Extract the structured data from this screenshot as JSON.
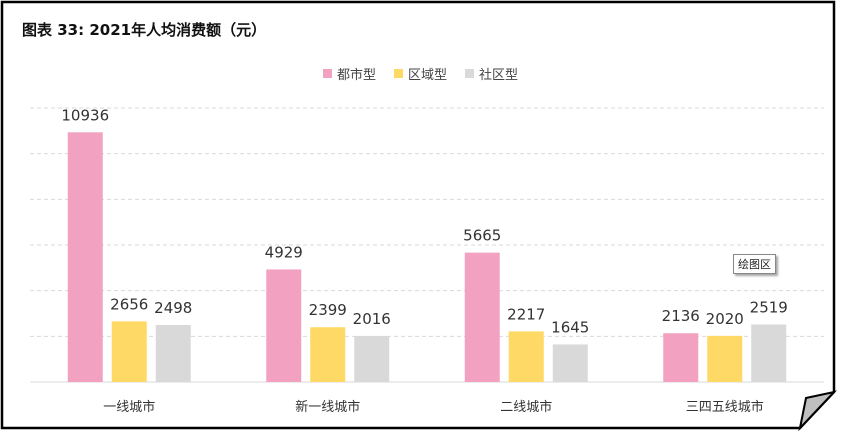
{
  "title": "图表 33: 2021年人均消费额（元）",
  "tooltip": "绘图区",
  "colors": {
    "pink": "#F2A2C0",
    "yellow": "#FFD966",
    "gray": "#D9D9D9"
  },
  "chart_data": {
    "type": "bar",
    "title": "图表 33: 2021年人均消费额（元）",
    "categories": [
      "一线城市",
      "新一线城市",
      "二线城市",
      "三四五线城市"
    ],
    "series": [
      {
        "name": "都市型",
        "color": "#F2A2C0",
        "values": [
          10936,
          4929,
          5665,
          2136
        ]
      },
      {
        "name": "区域型",
        "color": "#FFD966",
        "values": [
          2656,
          2399,
          2217,
          2020
        ]
      },
      {
        "name": "社区型",
        "color": "#D9D9D9",
        "values": [
          2498,
          2016,
          1645,
          2519
        ]
      }
    ],
    "ylim": [
      0,
      12000
    ],
    "grid": true,
    "legend_position": "top-center"
  }
}
